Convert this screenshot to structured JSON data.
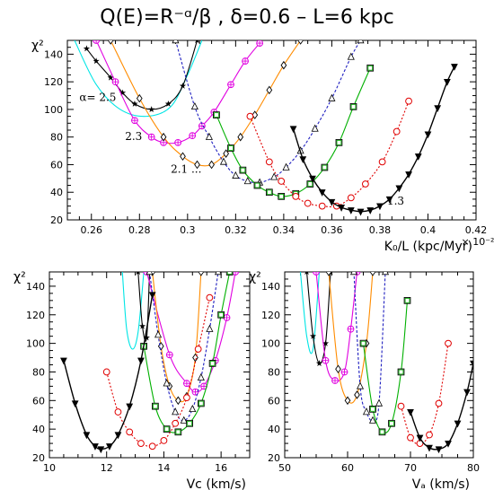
{
  "title": "Q(E)=R⁻ᵅ/β   ,  δ=0.6   –   L=6 kpc",
  "colors": {
    "2.5": "#00e5e5",
    "2.4": "#000000",
    "2.3": "#e000e0",
    "2.2": "#ff8c00",
    "2.1": "#2020c0",
    "2.0": "#00b000",
    "1.9": "#e00000",
    "1.8": "#000000"
  },
  "markers": {
    "2.5": "none",
    "2.4": "star",
    "2.3": "circle-plus",
    "2.2": "diamond",
    "2.1": "triangle-up",
    "2.0": "square",
    "1.9": "circle",
    "1.8": "triangle-down"
  },
  "chart_data": [
    {
      "type": "line",
      "panel": "top",
      "xlabel": "K₀/L (kpc/Myr)",
      "ylabel": "χ²",
      "x_multiplier": "× 10⁻²",
      "xlim": [
        0.25,
        0.42
      ],
      "ylim": [
        20,
        150
      ],
      "xticks": [
        "0.26",
        "0.28",
        "0.3",
        "0.32",
        "0.34",
        "0.36",
        "0.38",
        "0.4",
        "0.42"
      ],
      "yticks": [
        "20",
        "40",
        "60",
        "80",
        "100",
        "120",
        "140"
      ],
      "annotations": [
        {
          "text": "α= 2.5",
          "x": 0.255,
          "y": 106
        },
        {
          "text": "2.3",
          "x": 0.274,
          "y": 78
        },
        {
          "text": "2.1 ...",
          "x": 0.293,
          "y": 54
        },
        {
          "text": "1.3",
          "x": 0.383,
          "y": 31
        }
      ],
      "series": [
        {
          "key": "2.5",
          "x": [
            0.253,
            0.262,
            0.272,
            0.283,
            0.293,
            0.3,
            0.306
          ],
          "y": [
            150,
            118,
            100,
            95,
            102,
            125,
            150
          ]
        },
        {
          "key": "2.4",
          "x": [
            0.258,
            0.262,
            0.268,
            0.273,
            0.278,
            0.285,
            0.292,
            0.298,
            0.304
          ],
          "y": [
            144,
            135,
            123,
            112,
            104,
            100,
            104,
            117,
            150
          ]
        },
        {
          "key": "2.3",
          "x": [
            0.262,
            0.27,
            0.278,
            0.285,
            0.29,
            0.296,
            0.302,
            0.306,
            0.311,
            0.318,
            0.324,
            0.33
          ],
          "y": [
            150,
            120,
            92,
            80,
            76,
            76,
            81,
            88,
            98,
            118,
            135,
            148
          ]
        },
        {
          "key": "2.2",
          "x": [
            0.268,
            0.28,
            0.29,
            0.298,
            0.304,
            0.31,
            0.316,
            0.322,
            0.328,
            0.334,
            0.34,
            0.347
          ],
          "y": [
            150,
            108,
            80,
            66,
            60,
            60,
            68,
            80,
            96,
            114,
            132,
            150
          ]
        },
        {
          "key": "2.1",
          "x": [
            0.295,
            0.303,
            0.309,
            0.315,
            0.32,
            0.325,
            0.33,
            0.336,
            0.341,
            0.347,
            0.353,
            0.36,
            0.368,
            0.372
          ],
          "y": [
            150,
            102,
            80,
            62,
            52,
            48,
            47,
            51,
            58,
            70,
            86,
            108,
            138,
            150
          ]
        },
        {
          "key": "2.0",
          "x": [
            0.312,
            0.318,
            0.323,
            0.329,
            0.334,
            0.339,
            0.345,
            0.351,
            0.357,
            0.363,
            0.369,
            0.376
          ],
          "y": [
            96,
            72,
            56,
            45,
            40,
            37,
            39,
            46,
            58,
            76,
            102,
            130
          ]
        },
        {
          "key": "1.9",
          "x": [
            0.326,
            0.334,
            0.339,
            0.345,
            0.35,
            0.356,
            0.362,
            0.368,
            0.374,
            0.381,
            0.387,
            0.392
          ],
          "y": [
            95,
            62,
            48,
            37,
            32,
            30,
            30,
            36,
            46,
            62,
            84,
            106
          ]
        },
        {
          "key": "1.8",
          "x": [
            0.344,
            0.348,
            0.352,
            0.356,
            0.36,
            0.364,
            0.368,
            0.372,
            0.376,
            0.38,
            0.384,
            0.388,
            0.392,
            0.396,
            0.4,
            0.404,
            0.408,
            0.411
          ],
          "y": [
            86,
            64,
            50,
            40,
            33,
            29,
            27,
            26,
            27,
            30,
            35,
            43,
            53,
            66,
            82,
            101,
            120,
            131
          ]
        }
      ]
    },
    {
      "type": "line",
      "panel": "bottom-left",
      "xlabel": "Vᴄ (km/s)",
      "ylabel": "χ²",
      "xlim": [
        10,
        17
      ],
      "ylim": [
        20,
        150
      ],
      "xticks": [
        "10",
        "12",
        "14",
        "16"
      ],
      "yticks": [
        "20",
        "40",
        "60",
        "80",
        "100",
        "120",
        "140"
      ],
      "series": [
        {
          "key": "2.5",
          "x": [
            12.55,
            12.7,
            12.9,
            13.1,
            13.3
          ],
          "y": [
            150,
            110,
            96,
            108,
            150
          ]
        },
        {
          "key": "2.4",
          "x": [
            13.1,
            13.25,
            13.4,
            13.5
          ],
          "y": [
            150,
            112,
            104,
            150
          ]
        },
        {
          "key": "2.3",
          "x": [
            13.4,
            14.2,
            14.8,
            15.1,
            15.4,
            15.8,
            16.2,
            16.5
          ],
          "y": [
            150,
            92,
            72,
            66,
            70,
            88,
            118,
            150
          ]
        },
        {
          "key": "2.2",
          "x": [
            13.6,
            13.9,
            14.2,
            14.5,
            14.8,
            15.1,
            15.3
          ],
          "y": [
            150,
            98,
            70,
            60,
            63,
            90,
            150
          ]
        },
        {
          "key": "2.1",
          "x": [
            13.5,
            13.8,
            14.1,
            14.4,
            14.7,
            15.0,
            15.3,
            15.6,
            15.9
          ],
          "y": [
            150,
            106,
            72,
            52,
            46,
            54,
            76,
            110,
            150
          ]
        },
        {
          "key": "2.0",
          "x": [
            13.3,
            13.7,
            14.1,
            14.5,
            14.9,
            15.3,
            15.7,
            16.0,
            16.3
          ],
          "y": [
            98,
            56,
            40,
            38,
            44,
            58,
            86,
            120,
            150
          ]
        },
        {
          "key": "1.9",
          "x": [
            12.0,
            12.4,
            12.8,
            13.2,
            13.6,
            14.0,
            14.4,
            14.8,
            15.2,
            15.6
          ],
          "y": [
            80,
            52,
            38,
            30,
            28,
            32,
            44,
            62,
            96,
            132
          ]
        },
        {
          "key": "1.8",
          "x": [
            10.5,
            10.9,
            11.3,
            11.6,
            11.8,
            12.1,
            12.4,
            12.8,
            13.2,
            13.6
          ],
          "y": [
            88,
            58,
            36,
            28,
            26,
            28,
            36,
            56,
            88,
            134
          ]
        }
      ]
    },
    {
      "type": "line",
      "panel": "bottom-right",
      "xlabel": "Vₐ (km/s)",
      "ylabel": "χ²",
      "xlim": [
        50,
        80
      ],
      "ylim": [
        20,
        150
      ],
      "xticks": [
        "50",
        "60",
        "70",
        "80"
      ],
      "yticks": [
        "20",
        "40",
        "60",
        "80",
        "100",
        "120",
        "140"
      ],
      "series": [
        {
          "key": "2.5",
          "x": [
            52.5,
            53.5,
            54.5,
            55.5
          ],
          "y": [
            150,
            105,
            96,
            150
          ]
        },
        {
          "key": "2.4",
          "x": [
            53.5,
            54.5,
            55.5,
            56.5,
            57.3
          ],
          "y": [
            150,
            105,
            86,
            100,
            150
          ]
        },
        {
          "key": "2.3",
          "x": [
            55.0,
            56.5,
            58.0,
            59.5,
            60.5,
            61.5
          ],
          "y": [
            150,
            88,
            74,
            80,
            110,
            150
          ]
        },
        {
          "key": "2.2",
          "x": [
            57.0,
            58.5,
            60.0,
            61.5,
            63.0,
            64.0
          ],
          "y": [
            150,
            82,
            60,
            64,
            100,
            150
          ]
        },
        {
          "key": "2.1",
          "x": [
            61.0,
            62.0,
            63.0,
            64.0,
            65.0,
            66.0
          ],
          "y": [
            150,
            70,
            52,
            46,
            58,
            150
          ]
        },
        {
          "key": "2.0",
          "x": [
            62.5,
            64.0,
            65.5,
            67.0,
            68.5,
            69.5
          ],
          "y": [
            100,
            54,
            38,
            44,
            80,
            130
          ]
        },
        {
          "key": "1.9",
          "x": [
            68.5,
            70.0,
            71.5,
            73.0,
            74.5,
            76.0
          ],
          "y": [
            56,
            34,
            30,
            36,
            58,
            100
          ]
        },
        {
          "key": "1.8",
          "x": [
            70.0,
            71.5,
            73.0,
            74.5,
            76.0,
            77.5,
            79.0,
            80.0
          ],
          "y": [
            52,
            34,
            27,
            26,
            30,
            44,
            66,
            86
          ]
        }
      ]
    }
  ]
}
